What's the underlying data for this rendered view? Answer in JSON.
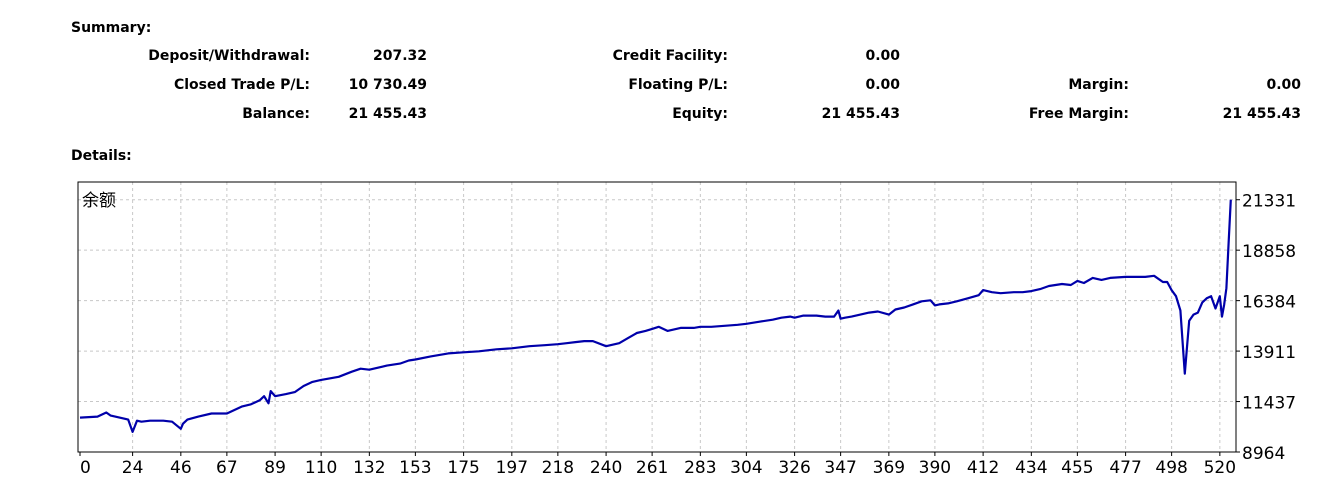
{
  "summary": {
    "title": "Summary:",
    "deposit_withdrawal": {
      "label": "Deposit/Withdrawal:",
      "value": "207.32"
    },
    "closed_trade_pl": {
      "label": "Closed Trade P/L:",
      "value": "10 730.49"
    },
    "balance": {
      "label": "Balance:",
      "value": "21 455.43"
    },
    "credit_facility": {
      "label": "Credit Facility:",
      "value": "0.00"
    },
    "floating_pl": {
      "label": "Floating P/L:",
      "value": "0.00"
    },
    "equity": {
      "label": "Equity:",
      "value": "21 455.43"
    },
    "margin": {
      "label": "Margin:",
      "value": "0.00"
    },
    "free_margin": {
      "label": "Free Margin:",
      "value": "21 455.43"
    }
  },
  "details": {
    "title": "Details:"
  },
  "colors": {
    "line": "#0000aa",
    "grid": "#c8c8c8",
    "frame": "#000000"
  },
  "chart_data": {
    "type": "line",
    "title": "余额",
    "x_ticks": [
      0,
      24,
      46,
      67,
      89,
      110,
      132,
      153,
      175,
      197,
      218,
      240,
      261,
      283,
      304,
      326,
      347,
      369,
      390,
      412,
      434,
      455,
      477,
      498,
      520
    ],
    "y_ticks": [
      8964,
      11437,
      13911,
      16384,
      18858,
      21331
    ],
    "xlim": [
      0,
      526
    ],
    "ylim": [
      8964,
      22200
    ],
    "series": [
      {
        "name": "余额",
        "x": [
          0,
          8,
          12,
          14,
          16,
          18,
          22,
          24,
          26,
          28,
          32,
          38,
          42,
          46,
          47,
          49,
          54,
          60,
          67,
          74,
          78,
          82,
          84,
          86,
          87,
          89,
          94,
          98,
          102,
          106,
          110,
          118,
          124,
          128,
          132,
          140,
          146,
          150,
          153,
          160,
          168,
          175,
          182,
          190,
          197,
          205,
          212,
          218,
          222,
          226,
          230,
          234,
          240,
          246,
          250,
          254,
          258,
          261,
          264,
          268,
          274,
          280,
          283,
          288,
          294,
          300,
          304,
          310,
          316,
          320,
          324,
          326,
          330,
          336,
          340,
          344,
          346,
          347,
          349,
          352,
          356,
          360,
          364,
          369,
          372,
          376,
          380,
          384,
          388,
          390,
          392,
          396,
          400,
          405,
          410,
          412,
          416,
          420,
          426,
          430,
          434,
          438,
          442,
          448,
          452,
          455,
          458,
          462,
          466,
          470,
          477,
          482,
          486,
          490,
          494,
          496,
          498,
          500,
          502,
          504,
          506,
          508,
          510,
          512,
          514,
          516,
          518,
          520,
          521,
          522,
          523,
          524,
          525
        ],
        "y": [
          10650,
          10700,
          10900,
          10750,
          10700,
          10650,
          10550,
          9950,
          10500,
          10450,
          10500,
          10500,
          10450,
          10100,
          10350,
          10550,
          10700,
          10850,
          10850,
          11200,
          11300,
          11500,
          11700,
          11350,
          11950,
          11700,
          11800,
          11900,
          12200,
          12400,
          12500,
          12650,
          12900,
          13050,
          13000,
          13200,
          13300,
          13450,
          13500,
          13650,
          13800,
          13850,
          13900,
          14000,
          14050,
          14150,
          14200,
          14250,
          14300,
          14350,
          14400,
          14400,
          14150,
          14300,
          14550,
          14800,
          14900,
          15000,
          15100,
          14900,
          15050,
          15050,
          15100,
          15100,
          15150,
          15200,
          15250,
          15350,
          15450,
          15550,
          15600,
          15550,
          15650,
          15650,
          15600,
          15600,
          15900,
          15500,
          15550,
          15600,
          15700,
          15800,
          15850,
          15700,
          15950,
          16050,
          16200,
          16350,
          16400,
          16150,
          16200,
          16250,
          16350,
          16500,
          16650,
          16900,
          16800,
          16750,
          16800,
          16800,
          16850,
          16950,
          17100,
          17200,
          17150,
          17350,
          17250,
          17500,
          17400,
          17500,
          17550,
          17550,
          17550,
          17600,
          17300,
          17300,
          16900,
          16600,
          15900,
          12800,
          15400,
          15700,
          15800,
          16300,
          16500,
          16600,
          16000,
          16600,
          15600,
          16200,
          17000,
          19200,
          21331
        ]
      }
    ]
  }
}
